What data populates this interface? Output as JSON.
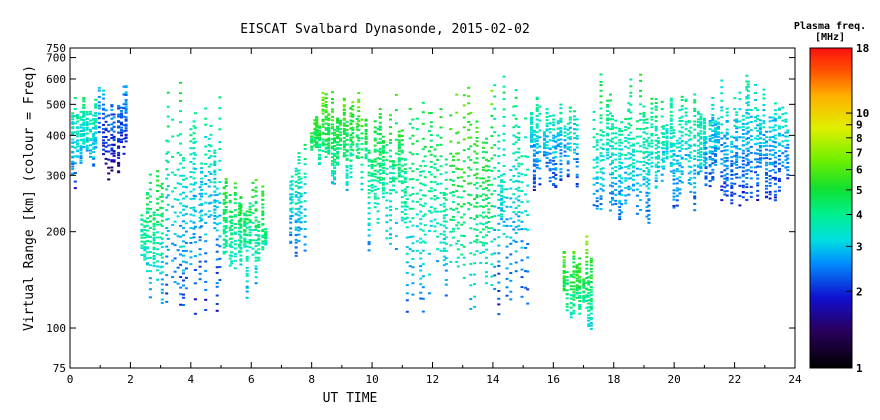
{
  "chart_data": {
    "type": "scatter",
    "title": "EISCAT Svalbard Dynasonde, 2015-02-02",
    "xlabel": "UT TIME",
    "ylabel": "Virtual Range [km] (colour = Freq)",
    "xlim": [
      0,
      24
    ],
    "ylim": [
      75,
      750
    ],
    "yscale": "log",
    "x_ticks": [
      "0",
      "2",
      "4",
      "6",
      "8",
      "10",
      "12",
      "14",
      "16",
      "18",
      "20",
      "22",
      "24"
    ],
    "y_ticks": [
      "75",
      "100",
      "200",
      "300",
      "400",
      "500",
      "600",
      "700",
      "750"
    ],
    "colorbar": {
      "title_line1": "Plasma freq.",
      "title_line2": "[MHz]",
      "scale": "log",
      "range": [
        1,
        18
      ],
      "ticks": [
        "18",
        "10",
        "9",
        "8",
        "7",
        "6",
        "5",
        "4",
        "3",
        "2",
        "1"
      ]
    },
    "series": [
      {
        "x_range": [
          0.0,
          0.9
        ],
        "y_range": [
          270,
          600
        ],
        "freq_mhz": 3.2
      },
      {
        "x_range": [
          0.9,
          1.9
        ],
        "y_range": [
          290,
          650
        ],
        "freq_mhz": 2.2
      },
      {
        "x_range": [
          2.3,
          3.1
        ],
        "y_range": [
          115,
          330
        ],
        "freq_mhz": 3.8
      },
      {
        "x_range": [
          3.1,
          4.0
        ],
        "y_range": [
          115,
          650
        ],
        "freq_mhz": 3.3
      },
      {
        "x_range": [
          4.0,
          5.0
        ],
        "y_range": [
          110,
          600
        ],
        "freq_mhz": 3.0
      },
      {
        "x_range": [
          5.0,
          6.5
        ],
        "y_range": [
          120,
          310
        ],
        "freq_mhz": 3.9
      },
      {
        "x_range": [
          7.2,
          7.8
        ],
        "y_range": [
          160,
          480
        ],
        "freq_mhz": 3.4
      },
      {
        "x_range": [
          7.9,
          9.8
        ],
        "y_range": [
          270,
          560
        ],
        "freq_mhz": 4.5
      },
      {
        "x_range": [
          9.8,
          11.0
        ],
        "y_range": [
          170,
          600
        ],
        "freq_mhz": 4.1
      },
      {
        "x_range": [
          11.0,
          12.5
        ],
        "y_range": [
          110,
          560
        ],
        "freq_mhz": 3.7
      },
      {
        "x_range": [
          12.5,
          14.0
        ],
        "y_range": [
          110,
          620
        ],
        "freq_mhz": 4.4
      },
      {
        "x_range": [
          14.0,
          15.2
        ],
        "y_range": [
          110,
          650
        ],
        "freq_mhz": 3.2
      },
      {
        "x_range": [
          15.2,
          16.8
        ],
        "y_range": [
          270,
          560
        ],
        "freq_mhz": 3.0
      },
      {
        "x_range": [
          16.3,
          17.3
        ],
        "y_range": [
          95,
          200
        ],
        "freq_mhz": 4.6
      },
      {
        "x_range": [
          17.3,
          19.5
        ],
        "y_range": [
          210,
          660
        ],
        "freq_mhz": 3.5
      },
      {
        "x_range": [
          19.5,
          21.0
        ],
        "y_range": [
          220,
          600
        ],
        "freq_mhz": 3.2
      },
      {
        "x_range": [
          21.0,
          23.8
        ],
        "y_range": [
          230,
          650
        ],
        "freq_mhz": 2.8
      }
    ]
  }
}
